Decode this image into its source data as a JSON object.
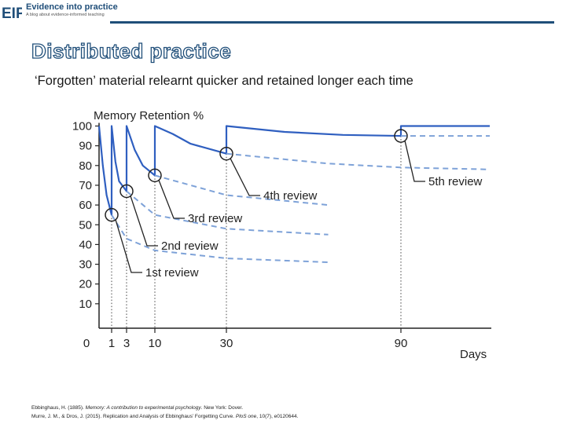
{
  "header": {
    "brand_title": "Evidence into practice",
    "brand_tagline": "A blog about evidence-informed teaching",
    "logo_text": "EIP"
  },
  "slide": {
    "title": "Distributed practice",
    "subtitle": "‘Forgotten’ material relearnt quicker and retained longer each time"
  },
  "colors": {
    "brand": "#1f4e79",
    "solid_curve": "#2f5fc0",
    "dashed_curve": "#7ea2d8",
    "guide_line": "#444444"
  },
  "chart_data": {
    "type": "line",
    "title": "Memory Retention %",
    "xlabel": "Days",
    "ylabel": "",
    "x_ticks": [
      0,
      1,
      3,
      10,
      30,
      90
    ],
    "y_ticks": [
      10,
      20,
      30,
      40,
      50,
      60,
      70,
      80,
      90,
      100
    ],
    "x_scale": "compressed (non-linear)",
    "ylim": [
      0,
      100
    ],
    "grid": false,
    "series": [
      {
        "style": "solid",
        "points": [
          [
            0,
            100
          ],
          [
            0.3,
            80
          ],
          [
            0.6,
            65
          ],
          [
            1,
            55
          ],
          [
            1,
            100
          ],
          [
            1.5,
            82
          ],
          [
            2,
            72
          ],
          [
            3,
            67
          ],
          [
            3,
            100
          ],
          [
            5,
            88
          ],
          [
            7,
            80
          ],
          [
            10,
            75
          ],
          [
            10,
            100
          ],
          [
            15,
            96
          ],
          [
            20,
            91
          ],
          [
            30,
            86
          ],
          [
            30,
            100
          ],
          [
            50,
            97
          ],
          [
            70,
            95.5
          ],
          [
            90,
            95
          ],
          [
            90,
            100
          ],
          [
            130,
            100
          ]
        ]
      },
      {
        "style": "dashed",
        "points": [
          [
            1,
            55
          ],
          [
            3,
            43
          ],
          [
            10,
            37
          ],
          [
            30,
            33
          ],
          [
            65,
            31
          ]
        ]
      },
      {
        "style": "dashed",
        "points": [
          [
            3,
            67
          ],
          [
            10,
            55
          ],
          [
            30,
            48
          ],
          [
            65,
            45
          ]
        ]
      },
      {
        "style": "dashed",
        "points": [
          [
            10,
            75
          ],
          [
            30,
            65
          ],
          [
            65,
            60
          ]
        ]
      },
      {
        "style": "dashed",
        "points": [
          [
            30,
            86
          ],
          [
            65,
            81
          ],
          [
            90,
            79
          ],
          [
            130,
            78
          ]
        ]
      },
      {
        "style": "dashed",
        "points": [
          [
            90,
            95
          ],
          [
            130,
            95
          ]
        ]
      }
    ],
    "annotations": [
      {
        "label": "1st review",
        "day": 1,
        "retention": 55
      },
      {
        "label": "2nd review",
        "day": 3,
        "retention": 67
      },
      {
        "label": "3rd review",
        "day": 10,
        "retention": 75
      },
      {
        "label": "4th review",
        "day": 30,
        "retention": 86
      },
      {
        "label": "5th review",
        "day": 90,
        "retention": 95
      }
    ]
  },
  "references": {
    "ref1_pre": "Ebbinghaus, H. (1885). ",
    "ref1_title": "Memory: A contribution to experimental psychology",
    "ref1_post": ". New York: Dover.",
    "ref2_pre": "Murre, J. M., & Dros, J. (2015). Replication and Analysis of Ebbinghaus’ Forgetting Curve. ",
    "ref2_journal": "PloS one",
    "ref2_post": ", 10(7), e0120644."
  }
}
